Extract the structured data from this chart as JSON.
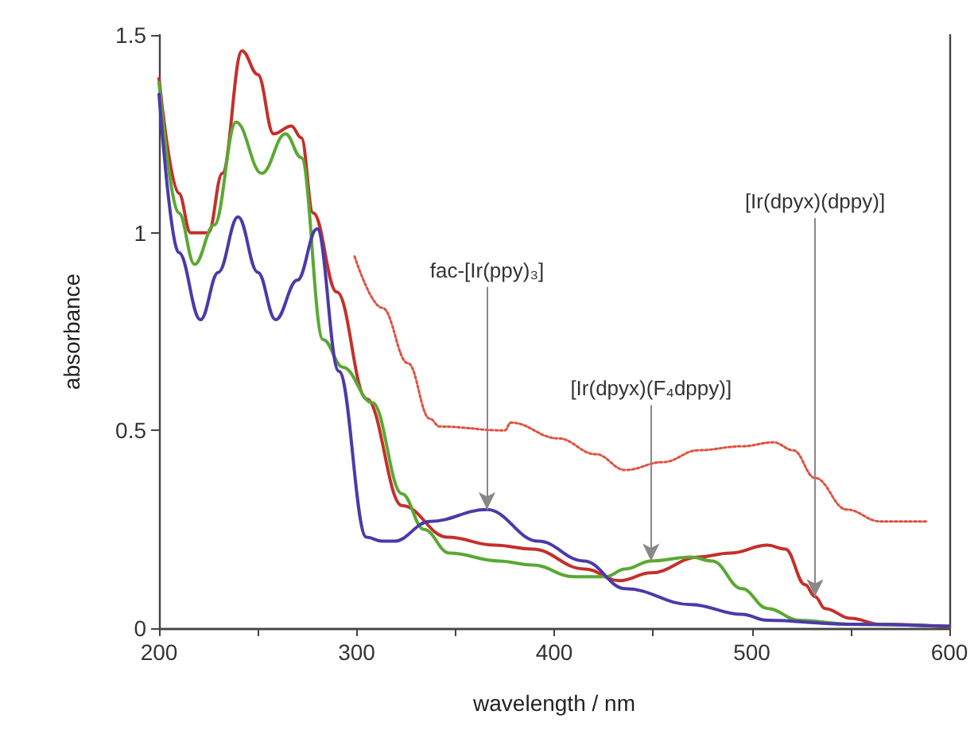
{
  "chart_data": {
    "type": "line",
    "xlabel": "wavelength / nm",
    "ylabel": "absorbance",
    "xlim": [
      200,
      600
    ],
    "ylim": [
      0,
      1.5
    ],
    "xticks": [
      200,
      {
        "value": 250,
        "label": null
      },
      300,
      {
        "value": 350,
        "label": null
      },
      400,
      {
        "value": 450,
        "label": null
      },
      500,
      {
        "value": 550,
        "label": null
      },
      600
    ],
    "yticks": [
      0,
      0.5,
      1,
      1.5
    ],
    "grid": false,
    "marker": "none",
    "series": [
      {
        "color": "#c4302b",
        "line_style": "solid",
        "x": [
          200,
          210,
          216,
          225,
          232,
          242,
          250,
          258,
          267,
          272,
          278,
          290,
          305,
          323,
          346,
          370,
          389,
          415,
          433,
          449,
          473,
          489,
          508,
          517,
          527,
          532,
          537,
          550,
          565,
          600
        ],
        "values": [
          1.39,
          1.1,
          1.0,
          1.0,
          1.15,
          1.46,
          1.4,
          1.25,
          1.27,
          1.24,
          1.05,
          0.85,
          0.58,
          0.31,
          0.23,
          0.21,
          0.2,
          0.15,
          0.12,
          0.14,
          0.18,
          0.19,
          0.21,
          0.2,
          0.11,
          0.08,
          0.05,
          0.025,
          0.01,
          0.003
        ]
      },
      {
        "color": "#5aa833",
        "line_style": "solid",
        "x": [
          200,
          210,
          218,
          228,
          239,
          252,
          264,
          272,
          283,
          293,
          308,
          323,
          334,
          347,
          372,
          389,
          410,
          426,
          436,
          449,
          469,
          480,
          495,
          508,
          524,
          550,
          600
        ],
        "values": [
          1.38,
          1.05,
          0.92,
          1.02,
          1.28,
          1.15,
          1.25,
          1.19,
          0.73,
          0.66,
          0.57,
          0.34,
          0.25,
          0.19,
          0.17,
          0.16,
          0.13,
          0.13,
          0.15,
          0.17,
          0.18,
          0.17,
          0.1,
          0.05,
          0.02,
          0.01,
          0.005
        ]
      },
      {
        "color": "#4b3aa8",
        "line_style": "solid",
        "x": [
          200,
          210,
          221,
          230,
          240,
          250,
          259,
          270,
          280,
          291,
          305,
          313,
          319,
          337,
          366,
          392,
          415,
          436,
          469,
          495,
          508,
          548,
          600
        ],
        "values": [
          1.35,
          0.95,
          0.78,
          0.9,
          1.04,
          0.9,
          0.78,
          0.88,
          1.01,
          0.65,
          0.23,
          0.22,
          0.22,
          0.27,
          0.3,
          0.22,
          0.17,
          0.1,
          0.06,
          0.035,
          0.02,
          0.01,
          0.005
        ]
      },
      {
        "color": "#e0503f",
        "line_style": "dotted",
        "x": [
          299,
          313,
          326,
          337,
          342,
          375,
          378,
          402,
          421,
          436,
          455,
          473,
          495,
          511,
          521,
          532,
          548,
          565,
          589
        ],
        "values": [
          0.94,
          0.81,
          0.67,
          0.53,
          0.51,
          0.5,
          0.52,
          0.48,
          0.44,
          0.4,
          0.42,
          0.45,
          0.46,
          0.47,
          0.45,
          0.38,
          0.3,
          0.27,
          0.27
        ]
      }
    ],
    "annotations": [
      {
        "text": "fac-[Ir(ppy)₃]",
        "x": 366,
        "y": 0.3
      },
      {
        "text": "[Ir(dpyx)(F₄dppy)]",
        "x": 449,
        "y": 0.17
      },
      {
        "text": "[Ir(dpyx)(dppy)]",
        "x": 532,
        "y": 0.08
      }
    ]
  }
}
